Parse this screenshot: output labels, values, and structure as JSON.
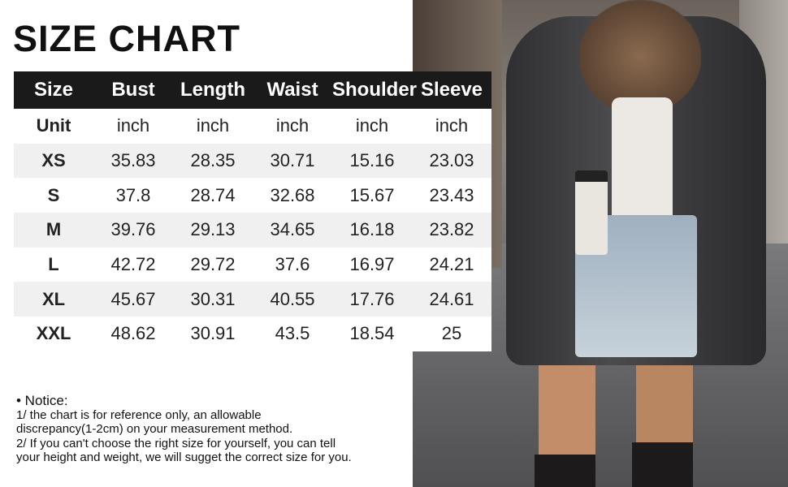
{
  "title": "SIZE CHART",
  "table": {
    "headers": [
      "Size",
      "Bust",
      "Length",
      "Waist",
      "Shoulder",
      "Sleeve"
    ],
    "unit_row": [
      "Unit",
      "inch",
      "inch",
      "inch",
      "inch",
      "inch"
    ],
    "rows": [
      [
        "XS",
        "35.83",
        "28.35",
        "30.71",
        "15.16",
        "23.03"
      ],
      [
        "S",
        "37.8",
        "28.74",
        "32.68",
        "15.67",
        "23.43"
      ],
      [
        "M",
        "39.76",
        "29.13",
        "34.65",
        "16.18",
        "23.82"
      ],
      [
        "L",
        "42.72",
        "29.72",
        "37.6",
        "16.97",
        "24.21"
      ],
      [
        "XL",
        "45.67",
        "30.31",
        "40.55",
        "17.76",
        "24.61"
      ],
      [
        "XXL",
        "48.62",
        "30.91",
        "43.5",
        "18.54",
        "25"
      ]
    ]
  },
  "notice": {
    "heading": "• Notice:",
    "lines": [
      "1/ the chart is for reference only, an allowable",
      "discrepancy(1-2cm) on your measurement method.",
      "2/ If you can't choose the right size for yourself, you can tell",
      "your height and weight, we will sugget the correct size for you."
    ]
  },
  "colors": {
    "header_bg": "#1a1a1a",
    "alt_row_bg": "#f0f0f0"
  }
}
